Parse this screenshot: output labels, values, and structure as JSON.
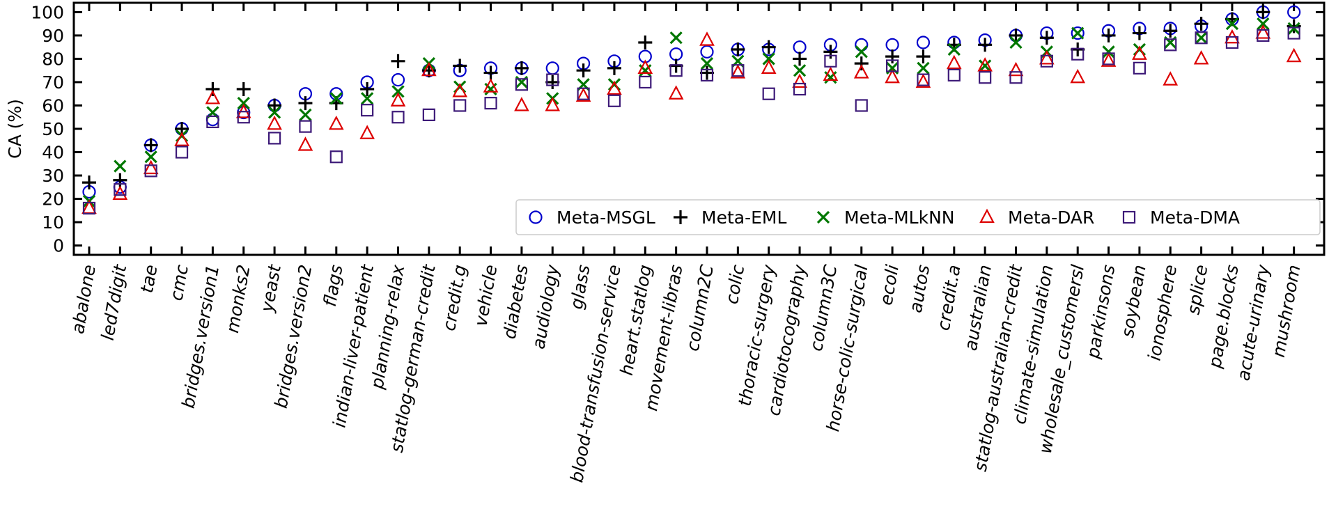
{
  "chart_data": {
    "type": "scatter",
    "title": "",
    "xlabel": "",
    "ylabel": "CA (%)",
    "ylim": [
      -4,
      104
    ],
    "yticks": [
      0,
      10,
      20,
      30,
      40,
      50,
      60,
      70,
      80,
      90,
      100
    ],
    "grid": false,
    "legend_position": "lower-right",
    "categories": [
      "abalone",
      "led7digit",
      "tae",
      "cmc",
      "bridges.version1",
      "monks2",
      "yeast",
      "bridges.version2",
      "flags",
      "indian-liver-patient",
      "planning-relax",
      "statlog-german-credit",
      "credit.g",
      "vehicle",
      "diabetes",
      "audiology",
      "glass",
      "blood-transfusion-service",
      "heart.statlog",
      "movement-libras",
      "column2C",
      "colic",
      "thoracic-surgery",
      "cardiotocography",
      "column3C",
      "horse-colic-surgical",
      "ecoli",
      "autos",
      "credit.a",
      "australian",
      "statlog-australian-credit",
      "climate-simulation",
      "wholesale_customersl",
      "parkinsons",
      "soybean",
      "ionosphere",
      "splice",
      "page.blocks",
      "acute-urinary",
      "mushroom"
    ],
    "series": [
      {
        "name": "Meta-MSGL",
        "marker": "circle",
        "color": "#0000cc",
        "values": [
          23,
          25,
          43,
          50,
          54,
          57,
          60,
          65,
          65,
          70,
          71,
          75,
          75,
          76,
          76,
          76,
          78,
          79,
          81,
          82,
          83,
          84,
          84,
          85,
          86,
          86,
          86,
          87,
          87,
          88,
          90,
          91,
          91,
          92,
          93,
          93,
          94,
          97,
          100,
          100
        ]
      },
      {
        "name": "Meta-EML",
        "marker": "plus",
        "color": "#000000",
        "values": [
          27,
          28,
          43,
          50,
          67,
          67,
          60,
          61,
          61,
          67,
          79,
          75,
          77,
          74,
          76,
          70,
          75,
          76,
          87,
          77,
          74,
          84,
          85,
          80,
          83,
          78,
          81,
          81,
          86,
          86,
          90,
          89,
          84,
          90,
          91,
          92,
          95,
          97,
          100,
          94
        ]
      },
      {
        "name": "Meta-MLkNN",
        "marker": "x",
        "color": "#007700",
        "values": [
          19,
          34,
          38,
          47,
          57,
          61,
          57,
          56,
          63,
          63,
          66,
          78,
          68,
          67,
          70,
          63,
          69,
          69,
          75,
          89,
          78,
          79,
          80,
          75,
          72,
          83,
          76,
          76,
          84,
          77,
          87,
          83,
          91,
          83,
          84,
          87,
          89,
          95,
          95,
          93
        ]
      },
      {
        "name": "Meta-DAR",
        "marker": "triangle",
        "color": "#dd0000",
        "values": [
          16,
          22,
          33,
          45,
          63,
          57,
          52,
          43,
          52,
          48,
          62,
          75,
          66,
          68,
          60,
          60,
          64,
          67,
          76,
          65,
          88,
          74,
          76,
          70,
          73,
          74,
          72,
          70,
          78,
          77,
          75,
          80,
          72,
          79,
          82,
          71,
          80,
          89,
          91,
          81
        ]
      },
      {
        "name": "Meta-DMA",
        "marker": "square",
        "color": "#3d1a78",
        "values": [
          16,
          24,
          32,
          40,
          53,
          55,
          46,
          51,
          38,
          58,
          55,
          56,
          60,
          61,
          69,
          71,
          65,
          62,
          70,
          75,
          73,
          75,
          65,
          67,
          79,
          60,
          77,
          71,
          73,
          72,
          72,
          79,
          82,
          80,
          76,
          86,
          89,
          87,
          90,
          91
        ]
      }
    ]
  }
}
